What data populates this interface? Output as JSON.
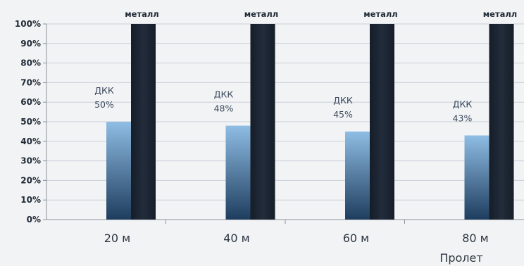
{
  "chart_data": {
    "type": "bar",
    "categories": [
      "20 м",
      "40 м",
      "60 м",
      "80 м"
    ],
    "xlabel": "Пролет",
    "ylabel": "",
    "ylim": [
      0,
      100
    ],
    "yticks": [
      "0%",
      "10%",
      "20%",
      "30%",
      "40%",
      "50%",
      "60%",
      "70%",
      "80%",
      "90%",
      "100%"
    ],
    "grid": true,
    "series": [
      {
        "name": "ДКК",
        "values": [
          50,
          48,
          45,
          43
        ],
        "data_labels": [
          [
            "ДКК",
            "50%"
          ],
          [
            "ДКК",
            "48%"
          ],
          [
            "ДКК",
            "45%"
          ],
          [
            "ДКК",
            "43%"
          ]
        ],
        "color": "#8fbde4"
      },
      {
        "name": "металл",
        "values": [
          100,
          100,
          100,
          100
        ],
        "data_labels": [
          "металл",
          "металл",
          "металл",
          "металл"
        ],
        "color": "#1c2533"
      }
    ]
  },
  "colors": {
    "background": "#f2f3f5",
    "grid": "#c9d0d8",
    "axis": "#8a939c",
    "dkk_top": "#8fbde4",
    "dkk_bottom": "#1e3d5e",
    "metal": "#1c2533"
  }
}
